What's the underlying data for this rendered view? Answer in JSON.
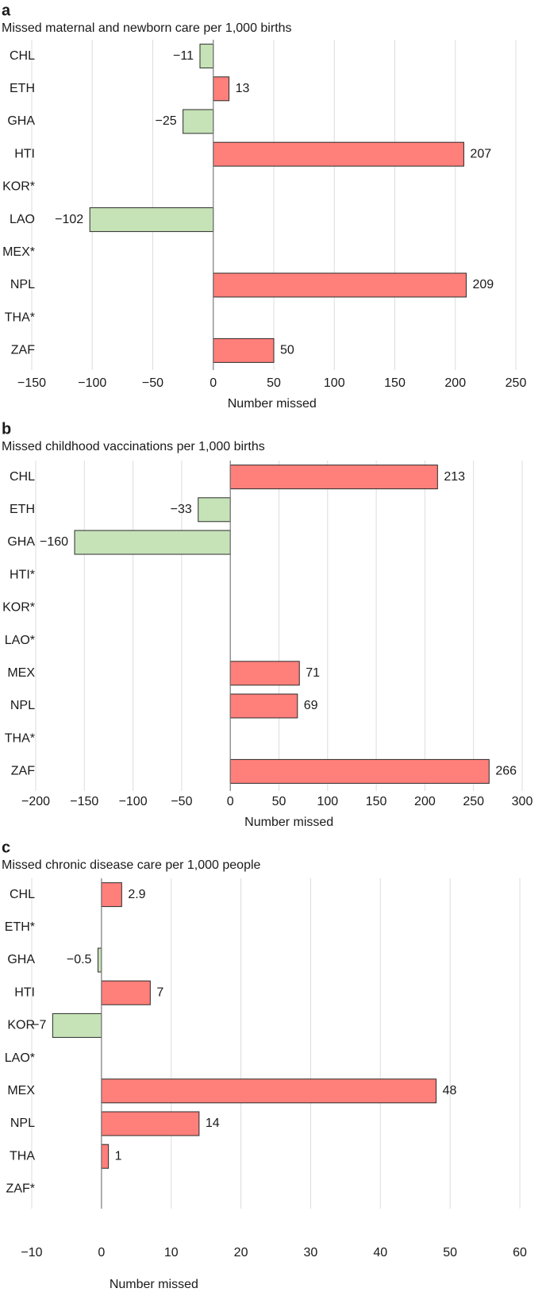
{
  "colors": {
    "positive": "#ff7f7a",
    "negative": "#c6e3b7",
    "grid": "#dcdcdc",
    "zero_line": "#7a7a7a"
  },
  "chart_data": [
    {
      "type": "bar",
      "orientation": "horizontal",
      "panel": "a",
      "title": "Missed maternal and newborn care per 1,000 births",
      "xlabel": "Number missed",
      "categories": [
        "CHL",
        "ETH",
        "GHA",
        "HTI",
        "KOR*",
        "LAO",
        "MEX*",
        "NPL",
        "THA*",
        "ZAF"
      ],
      "values": [
        -11,
        13,
        -25,
        207,
        null,
        -102,
        null,
        209,
        null,
        50
      ],
      "value_labels": [
        "−11",
        "13",
        "−25",
        "207",
        "",
        "−102",
        "",
        "209",
        "",
        "50"
      ],
      "xlim": [
        -150,
        250
      ],
      "xticks": [
        -150,
        -100,
        -50,
        0,
        50,
        100,
        150,
        200,
        250
      ],
      "xtick_labels": [
        "−150",
        "−100",
        "−50",
        "0",
        "50",
        "100",
        "150",
        "200",
        "250"
      ],
      "grid": true
    },
    {
      "type": "bar",
      "orientation": "horizontal",
      "panel": "b",
      "title": "Missed childhood vaccinations per 1,000 births",
      "xlabel": "Number missed",
      "categories": [
        "CHL",
        "ETH",
        "GHA",
        "HTI*",
        "KOR*",
        "LAO*",
        "MEX",
        "NPL",
        "THA*",
        "ZAF"
      ],
      "values": [
        213,
        -33,
        -160,
        null,
        null,
        null,
        71,
        69,
        null,
        266
      ],
      "value_labels": [
        "213",
        "−33",
        "−160",
        "",
        "",
        "",
        "71",
        "69",
        "",
        "266"
      ],
      "xlim": [
        -200,
        300
      ],
      "xticks": [
        -200,
        -150,
        -100,
        -50,
        0,
        50,
        100,
        150,
        200,
        250,
        300
      ],
      "xtick_labels": [
        "−200",
        "−150",
        "−100",
        "−50",
        "0",
        "50",
        "100",
        "150",
        "200",
        "250",
        "300"
      ],
      "grid": true
    },
    {
      "type": "bar",
      "orientation": "horizontal",
      "panel": "c",
      "title": "Missed chronic disease care per 1,000 people",
      "xlabel": "Number missed",
      "categories": [
        "CHL",
        "ETH*",
        "GHA",
        "HTI",
        "KOR",
        "LAO*",
        "MEX",
        "NPL",
        "THA",
        "ZAF*"
      ],
      "values": [
        2.9,
        null,
        -0.5,
        7,
        -7,
        null,
        48,
        14,
        1,
        null
      ],
      "value_labels": [
        "2.9",
        "",
        "−0.5",
        "7",
        "−7",
        "",
        "48",
        "14",
        "1",
        ""
      ],
      "xlim": [
        -10,
        60
      ],
      "xticks": [
        -10,
        0,
        10,
        20,
        30,
        40,
        50,
        60
      ],
      "xtick_labels": [
        "−10",
        "0",
        "10",
        "20",
        "30",
        "40",
        "50",
        "60"
      ],
      "grid": true
    }
  ]
}
